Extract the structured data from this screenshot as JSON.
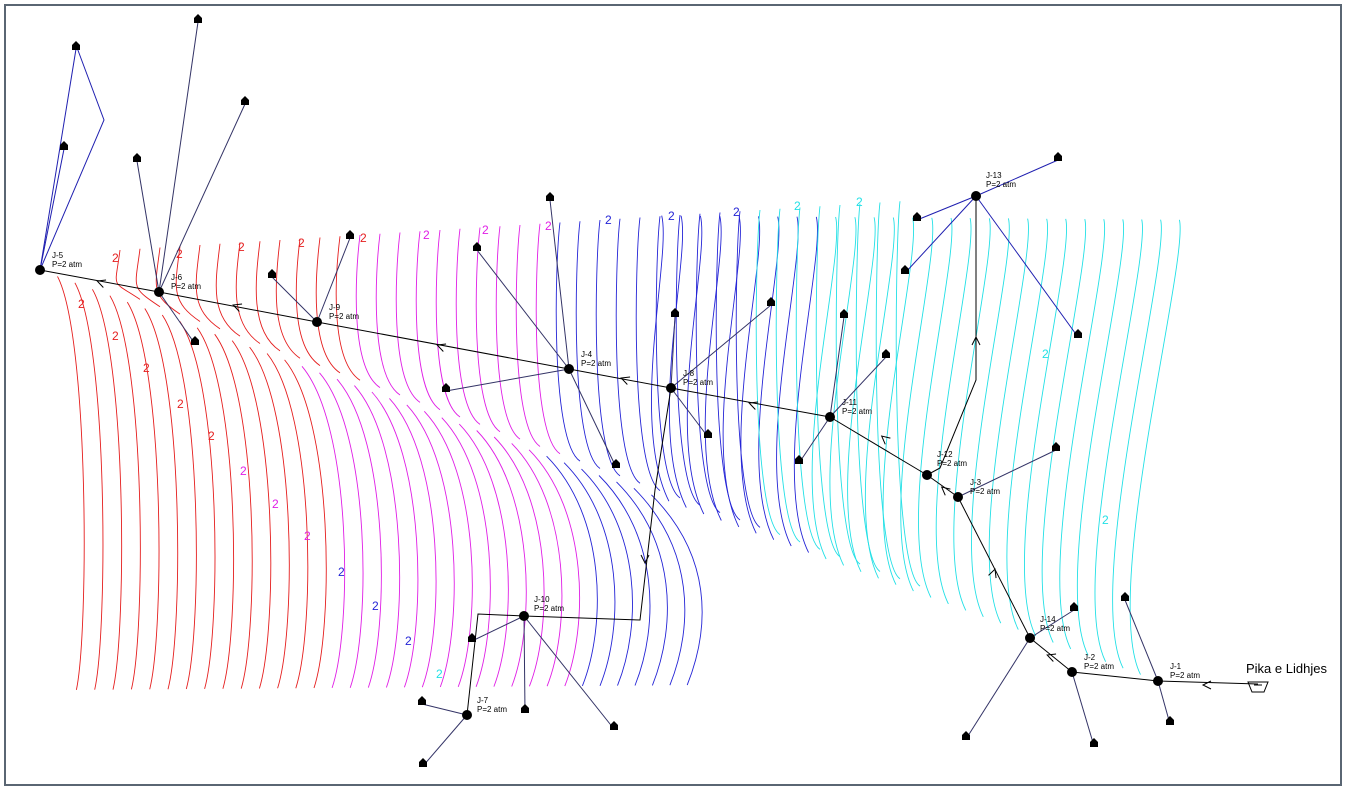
{
  "colors": {
    "red": "#e51e1e",
    "magenta": "#e01ee6",
    "blue": "#2424d6",
    "cyan": "#22e0e6",
    "pipe": "#000000",
    "service": "#1f1fb0",
    "frame": "#5a6673"
  },
  "contour_label": "2",
  "source": {
    "label": "Pika e Lidhjes"
  },
  "junctions": [
    {
      "id": "J-5",
      "pressure": "P=2 atm"
    },
    {
      "id": "J-6",
      "pressure": "P=2 atm"
    },
    {
      "id": "J-9",
      "pressure": "P=2 atm"
    },
    {
      "id": "J-4",
      "pressure": "P=2 atm"
    },
    {
      "id": "J-8",
      "pressure": "P=2 atm"
    },
    {
      "id": "J-11",
      "pressure": "P=2 atm"
    },
    {
      "id": "J-13",
      "pressure": "P=2 atm"
    },
    {
      "id": "J-12",
      "pressure": "P=2 atm"
    },
    {
      "id": "J-3",
      "pressure": "P=2 atm"
    },
    {
      "id": "J-14",
      "pressure": "P=2 atm"
    },
    {
      "id": "J-2",
      "pressure": "P=2 atm"
    },
    {
      "id": "J-1",
      "pressure": "P=2 atm"
    },
    {
      "id": "J-10",
      "pressure": "P=2 atm"
    },
    {
      "id": "J-7",
      "pressure": "P=2 atm"
    }
  ],
  "consumer_icon": "house-icon",
  "flow_icon": "flow-arrow-icon",
  "source_icon": "reservoir-icon"
}
